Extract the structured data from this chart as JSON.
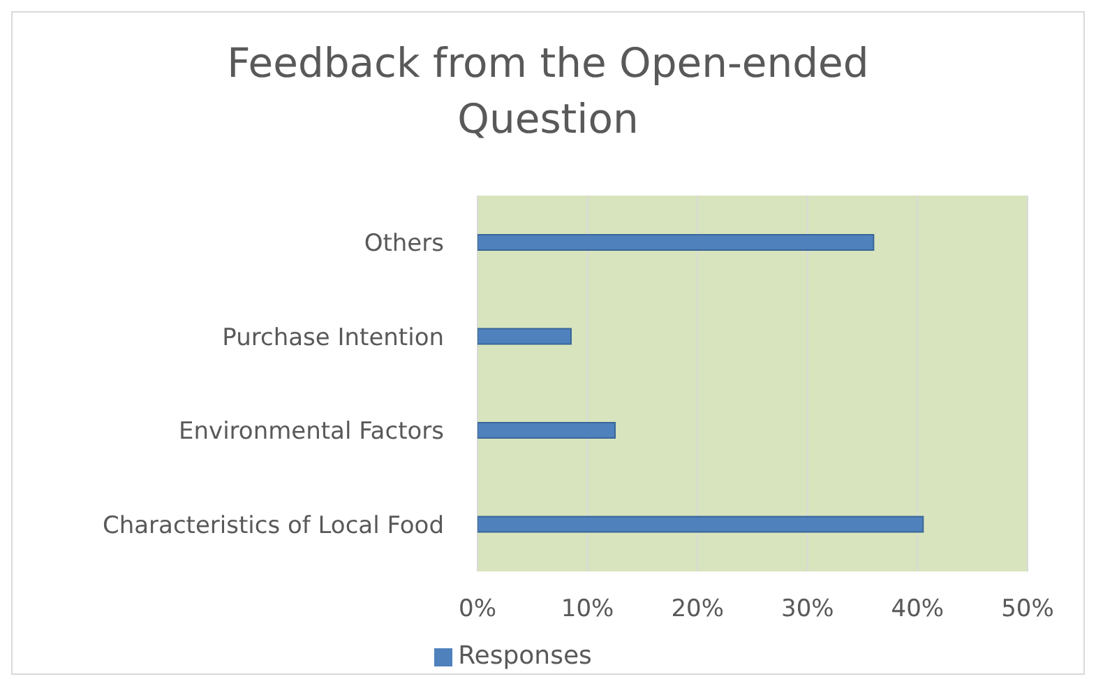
{
  "chart_data": {
    "type": "bar",
    "title": "Feedback from the Open-ended Question",
    "orientation": "horizontal",
    "categories": [
      "Others",
      "Purchase Intention",
      "Environmental Factors",
      "Characteristics of Local Food"
    ],
    "series": [
      {
        "name": "Responses",
        "color": "#4f81bd",
        "values": [
          36,
          8.5,
          12.5,
          40.5
        ]
      }
    ],
    "xlim": [
      0,
      50
    ],
    "xticks": [
      {
        "value": 0,
        "label": "0%"
      },
      {
        "value": 10,
        "label": "10%"
      },
      {
        "value": 20,
        "label": "20%"
      },
      {
        "value": 30,
        "label": "30%"
      },
      {
        "value": 40,
        "label": "40%"
      },
      {
        "value": 50,
        "label": "50%"
      }
    ],
    "grid": "x",
    "legend": "bottom"
  }
}
